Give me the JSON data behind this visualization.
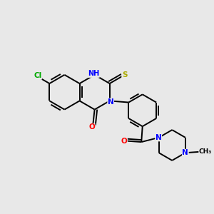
{
  "background_color": "#e8e8e8",
  "bond_color": "#000000",
  "atom_colors": {
    "Cl": "#00aa00",
    "N": "#0000ff",
    "O": "#ff0000",
    "S": "#aaaa00",
    "H": "#555555",
    "C": "#000000"
  },
  "figsize": [
    3.0,
    3.0
  ],
  "dpi": 100
}
